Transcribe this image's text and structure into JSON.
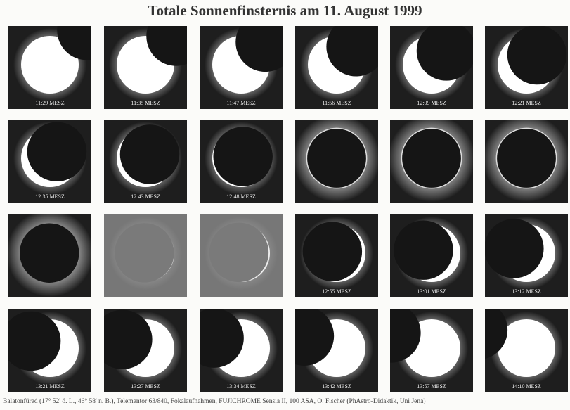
{
  "title": "Totale Sonnenfinsternis am 11. August 1999",
  "frames": [
    "11:29 MESZ",
    "11:35 MESZ",
    "11:47 MESZ",
    "11:56 MESZ",
    "12:09 MESZ",
    "12:21 MESZ",
    "12:35 MESZ",
    "12:43 MESZ",
    "12:48 MESZ",
    null,
    null,
    null,
    null,
    null,
    null,
    "12:55 MESZ",
    "13:01 MESZ",
    "13:12 MESZ",
    "13:21 MESZ",
    "13:27 MESZ",
    "13:34 MESZ",
    "13:42 MESZ",
    "13:57 MESZ",
    "14:10 MESZ"
  ],
  "footer": "Balatonfüred (17° 52' ö. L., 46° 58' n. B.), Telementor 63/840, Fokalaufnahmen, FUJICHROME Sensia II, 100 ASA, O. Fischer (PhAstro-Didaktik, Uni Jena)"
}
